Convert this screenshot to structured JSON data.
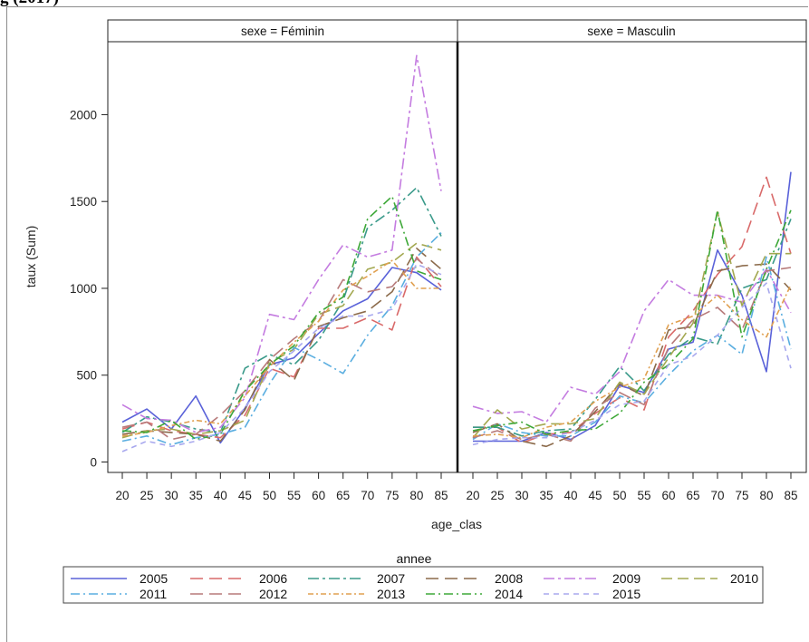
{
  "page": {
    "cut_title": "g (2017)"
  },
  "chart_data": {
    "type": "line",
    "xlabel": "age_clas",
    "ylabel": "taux (Sum)",
    "ylim": [
      -60,
      2420
    ],
    "yticks": [
      0,
      500,
      1000,
      1500,
      2000
    ],
    "x": [
      20,
      25,
      30,
      35,
      40,
      45,
      50,
      55,
      60,
      65,
      70,
      75,
      80,
      85
    ],
    "legend_title": "annee",
    "legend_position": "bottom",
    "grid": false,
    "panels": [
      {
        "label": "sexe = Féminin",
        "series": [
          {
            "name": "2005",
            "color": "#5a62d9",
            "dash": "",
            "values": [
              230,
              305,
              190,
              380,
              110,
              310,
              560,
              600,
              740,
              870,
              940,
              1120,
              1090,
              990
            ]
          },
          {
            "name": "2006",
            "color": "#d96a6a",
            "dash": "14 7",
            "values": [
              190,
              230,
              180,
              160,
              140,
              270,
              540,
              490,
              770,
              770,
              830,
              760,
              1180,
              1010
            ]
          },
          {
            "name": "2007",
            "color": "#3a9a8a",
            "dash": "12 4 3 4",
            "values": [
              170,
              260,
              230,
              190,
              170,
              540,
              620,
              560,
              700,
              930,
              1350,
              1450,
              1580,
              1300
            ]
          },
          {
            "name": "2008",
            "color": "#8b6a4a",
            "dash": "14 7",
            "values": [
              160,
              180,
              170,
              160,
              120,
              300,
              590,
              470,
              780,
              830,
              870,
              980,
              1230,
              1110
            ]
          },
          {
            "name": "2009",
            "color": "#c47ce0",
            "dash": "12 4 3 4",
            "values": [
              330,
              250,
              240,
              170,
              200,
              370,
              850,
              820,
              1050,
              1250,
              1180,
              1220,
              2340,
              1560
            ]
          },
          {
            "name": "2010",
            "color": "#a3a850",
            "dash": "12 6",
            "values": [
              140,
              180,
              190,
              160,
              180,
              240,
              570,
              650,
              850,
              900,
              1110,
              1150,
              1260,
              1220
            ]
          },
          {
            "name": "2011",
            "color": "#5aaee0",
            "dash": "10 4 2 4",
            "values": [
              120,
              150,
              100,
              140,
              160,
              200,
              450,
              660,
              590,
              510,
              730,
              900,
              1180,
              1320
            ]
          },
          {
            "name": "2012",
            "color": "#b77a7a",
            "dash": "14 7",
            "values": [
              200,
              230,
              130,
              160,
              270,
              410,
              590,
              710,
              810,
              1050,
              980,
              1010,
              1170,
              1060
            ]
          },
          {
            "name": "2013",
            "color": "#e0a050",
            "dash": "6 3 2 3",
            "values": [
              150,
              170,
              210,
              240,
              220,
              380,
              550,
              690,
              810,
              990,
              1070,
              1160,
              1000,
              1000
            ]
          },
          {
            "name": "2014",
            "color": "#3ea838",
            "dash": "10 4 2 4",
            "values": [
              180,
              170,
              240,
              130,
              160,
              410,
              560,
              670,
              860,
              950,
              1400,
              1530,
              1100,
              1050
            ]
          },
          {
            "name": "2015",
            "color": "#a8a8ee",
            "dash": "6 5",
            "values": [
              60,
              120,
              90,
              120,
              170,
              310,
              520,
              640,
              770,
              840,
              840,
              880,
              1140,
              1080
            ]
          }
        ]
      },
      {
        "label": "sexe = Masculin",
        "series": [
          {
            "name": "2005",
            "color": "#5a62d9",
            "dash": "",
            "values": [
              120,
              120,
              120,
              170,
              130,
              210,
              440,
              400,
              650,
              690,
              1220,
              960,
              520,
              1670
            ]
          },
          {
            "name": "2006",
            "color": "#d96a6a",
            "dash": "14 7",
            "values": [
              200,
              200,
              110,
              160,
              170,
              280,
              370,
              300,
              720,
              870,
              1080,
              1240,
              1640,
              1200
            ]
          },
          {
            "name": "2007",
            "color": "#3a9a8a",
            "dash": "12 4 3 4",
            "values": [
              200,
              200,
              150,
              180,
              190,
              360,
              550,
              410,
              620,
              720,
              680,
              1000,
              1050,
              1400
            ]
          },
          {
            "name": "2008",
            "color": "#8b6a4a",
            "dash": "14 7",
            "values": [
              170,
              220,
              120,
              90,
              150,
              290,
              450,
              380,
              760,
              780,
              1100,
              1130,
              1140,
              990
            ]
          },
          {
            "name": "2009",
            "color": "#c47ce0",
            "dash": "12 4 3 4",
            "values": [
              320,
              280,
              290,
              230,
              430,
              390,
              520,
              870,
              1050,
              960,
              960,
              920,
              1110,
              860
            ]
          },
          {
            "name": "2010",
            "color": "#a3a850",
            "dash": "12 6",
            "values": [
              140,
              300,
              190,
              220,
              220,
              250,
              460,
              390,
              600,
              800,
              1440,
              900,
              1200,
              1200
            ]
          },
          {
            "name": "2011",
            "color": "#5aaee0",
            "dash": "10 4 2 4",
            "values": [
              130,
              220,
              170,
              150,
              150,
              230,
              380,
              340,
              500,
              640,
              730,
              620,
              1180,
              650
            ]
          },
          {
            "name": "2012",
            "color": "#b77a7a",
            "dash": "14 7",
            "values": [
              140,
              180,
              130,
              160,
              120,
              310,
              400,
              330,
              660,
              820,
              890,
              760,
              1100,
              1120
            ]
          },
          {
            "name": "2013",
            "color": "#e0a050",
            "dash": "6 3 2 3",
            "values": [
              150,
              160,
              140,
              200,
              230,
              350,
              430,
              480,
              790,
              840,
              960,
              820,
              720,
              1020
            ]
          },
          {
            "name": "2014",
            "color": "#3ea838",
            "dash": "10 4 2 4",
            "values": [
              180,
              210,
              230,
              160,
              180,
              190,
              280,
              460,
              560,
              710,
              1450,
              720,
              1110,
              1450
            ]
          },
          {
            "name": "2015",
            "color": "#a8a8ee",
            "dash": "6 5",
            "values": [
              100,
              130,
              140,
              140,
              170,
              240,
              330,
              350,
              560,
              610,
              730,
              890,
              1030,
              540
            ]
          }
        ]
      }
    ]
  }
}
